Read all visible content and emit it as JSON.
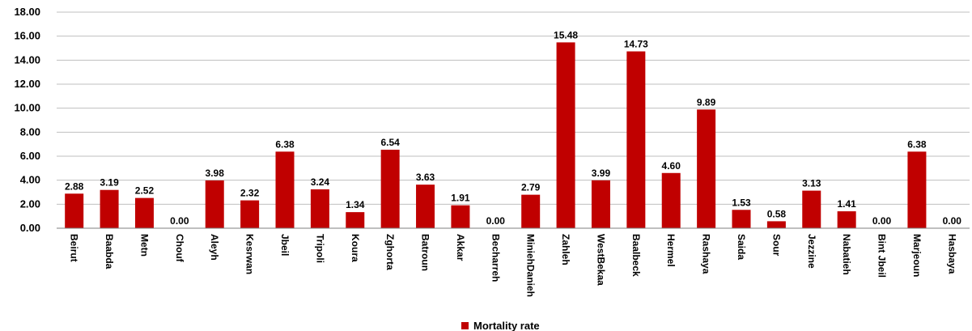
{
  "chart_data": {
    "type": "bar",
    "categories": [
      "Beirut",
      "Baabda",
      "Metn",
      "Chouf",
      "Aleyh",
      "Kesrwan",
      "Jbeil",
      "Tripoli",
      "Koura",
      "Zghorta",
      "Batroun",
      "Akkar",
      "Becharreh",
      "MiniehDanieh",
      "Zahleh",
      "WestBekaa",
      "Baalbeck",
      "Hermel",
      "Rashaya",
      "Saida",
      "Sour",
      "Jezzine",
      "Nabatieh",
      "Bint Jbeil",
      "Marjeoun",
      "Hasbaya"
    ],
    "series": [
      {
        "name": "Mortality rate",
        "values": [
          2.88,
          3.19,
          2.52,
          0.0,
          3.98,
          2.32,
          6.38,
          3.24,
          1.34,
          6.54,
          3.63,
          1.91,
          0.0,
          2.79,
          15.48,
          3.99,
          14.73,
          4.6,
          9.89,
          1.53,
          0.58,
          3.13,
          1.41,
          0.0,
          6.38,
          0.0
        ],
        "color": "#C00000"
      }
    ],
    "data_labels": [
      "2.88",
      "3.19",
      "2.52",
      "0.00",
      "3.98",
      "2.32",
      "6.38",
      "3.24",
      "1.34",
      "6.54",
      "3.63",
      "1.91",
      "0.00",
      "2.79",
      "15.48",
      "3.99",
      "14.73",
      "4.60",
      "9.89",
      "1.53",
      "0.58",
      "3.13",
      "1.41",
      "0.00",
      "6.38",
      "0.00"
    ],
    "y_ticks": [
      "0.00",
      "2.00",
      "4.00",
      "6.00",
      "8.00",
      "10.00",
      "12.00",
      "14.00",
      "16.00",
      "18.00"
    ],
    "ylim": [
      0,
      18
    ],
    "grid": true,
    "legend_position": "bottom-center",
    "title": "",
    "xlabel": "",
    "ylabel": ""
  }
}
